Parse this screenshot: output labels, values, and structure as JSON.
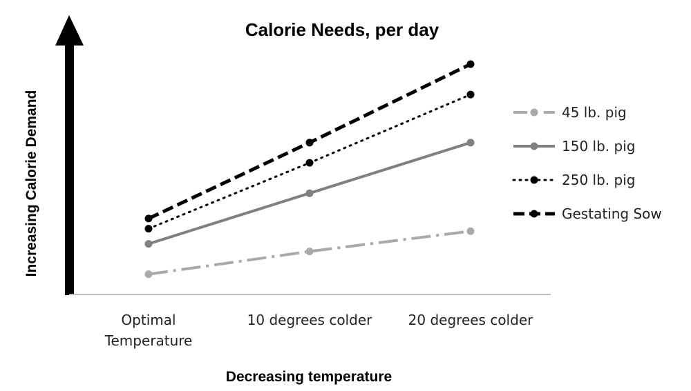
{
  "chart_data": {
    "type": "line",
    "title": "Calorie Needs, per day",
    "xlabel": "Decreasing temperature",
    "ylabel": "Increasing Calorie Demand",
    "categories": [
      [
        "Optimal",
        "Temperature"
      ],
      [
        "10 degrees colder"
      ],
      [
        "20 degrees colder"
      ]
    ],
    "ylim": [
      0,
      100
    ],
    "grid": false,
    "legend_position": "right",
    "series": [
      {
        "name": "45 lb. pig",
        "values": [
          8,
          17,
          25
        ],
        "color": "#aaaaaa",
        "style": "dashdot"
      },
      {
        "name": "150 lb. pig",
        "values": [
          20,
          40,
          60
        ],
        "color": "#808080",
        "style": "solid"
      },
      {
        "name": "250 lb. pig",
        "values": [
          26,
          52,
          79
        ],
        "color": "#000000",
        "style": "dotted"
      },
      {
        "name": "Gestating Sow",
        "values": [
          30,
          60,
          91
        ],
        "color": "#000000",
        "style": "dashed"
      }
    ]
  }
}
